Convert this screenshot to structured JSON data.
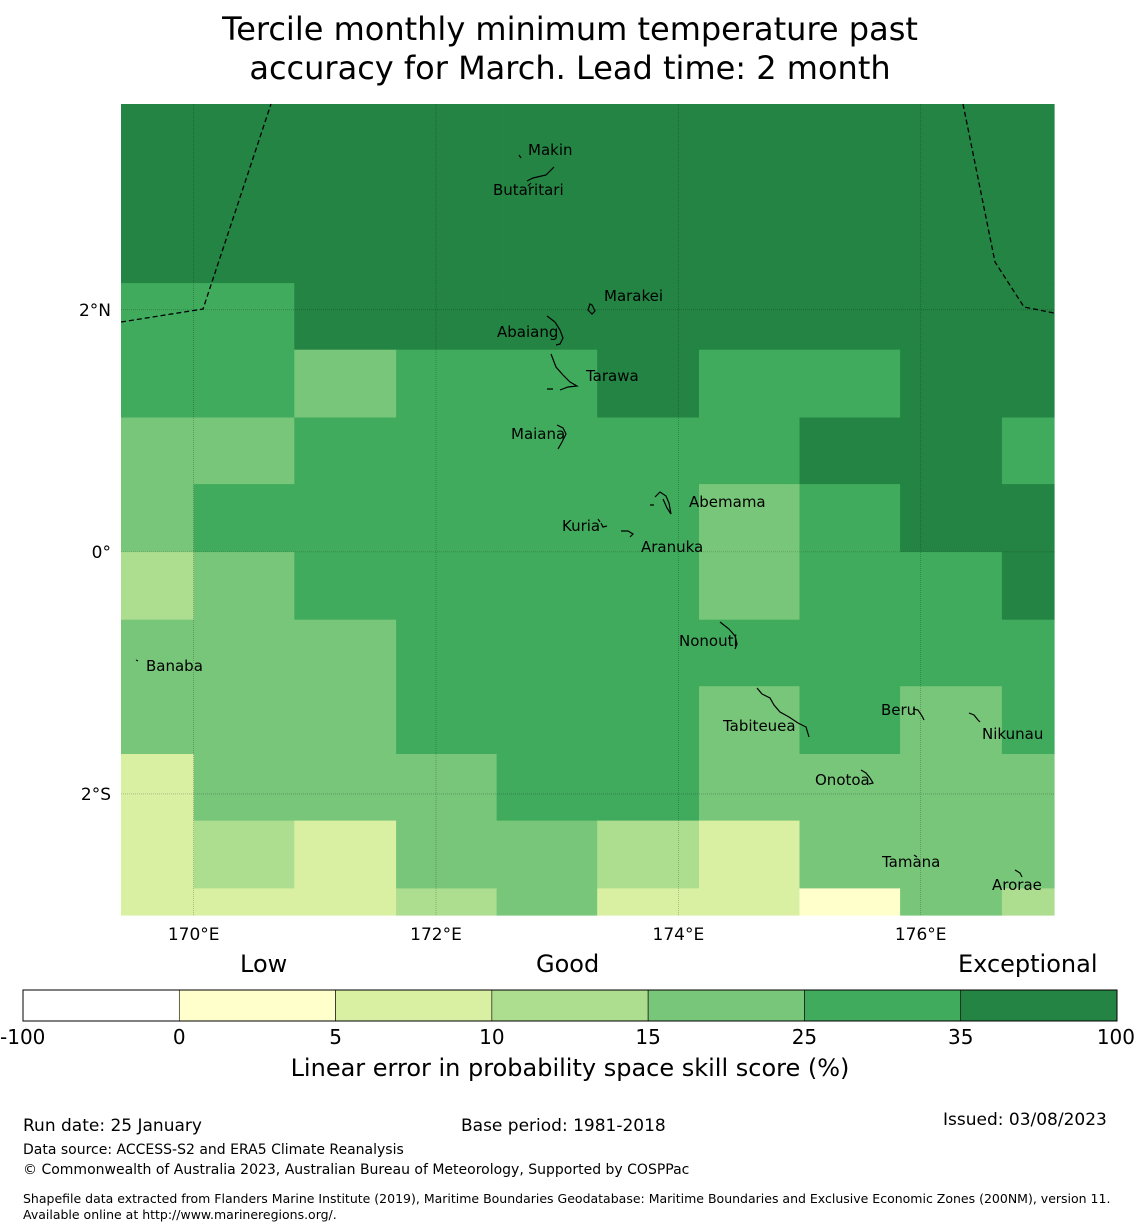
{
  "title": {
    "line1": "Tercile monthly minimum temperature past",
    "line2": "accuracy for March. Lead time: 2 month"
  },
  "map": {
    "lon_range": [
      169.4,
      177.1
    ],
    "lat_range": [
      -3.0,
      3.7
    ],
    "lat_ticks": [
      {
        "value": 2,
        "label": "2°N"
      },
      {
        "value": 0,
        "label": "0°"
      },
      {
        "value": -2,
        "label": "2°S"
      }
    ],
    "lon_ticks": [
      {
        "value": 170,
        "label": "170°E"
      },
      {
        "value": 172,
        "label": "172°E"
      },
      {
        "value": 174,
        "label": "174°E"
      },
      {
        "value": 176,
        "label": "176°E"
      }
    ],
    "grid_cols_lon": [
      169.4,
      170.0,
      170.83,
      171.67,
      172.5,
      173.33,
      174.17,
      175.0,
      175.83,
      176.67,
      177.1
    ],
    "grid_rows_lat": [
      3.7,
      2.22,
      1.67,
      1.11,
      0.56,
      0.0,
      -0.56,
      -1.11,
      -1.67,
      -2.22,
      -2.78,
      -3.0
    ],
    "skill_categories": [
      [
        6,
        6,
        6,
        6,
        6,
        6,
        6,
        6,
        6,
        6
      ],
      [
        5,
        5,
        6,
        6,
        6,
        6,
        6,
        6,
        6,
        6
      ],
      [
        5,
        5,
        4,
        5,
        5,
        6,
        5,
        5,
        6,
        6
      ],
      [
        4,
        4,
        5,
        5,
        5,
        5,
        5,
        6,
        6,
        5
      ],
      [
        4,
        5,
        5,
        5,
        5,
        5,
        4,
        5,
        6,
        6
      ],
      [
        3,
        4,
        5,
        5,
        5,
        5,
        4,
        5,
        5,
        6
      ],
      [
        4,
        4,
        4,
        5,
        5,
        5,
        5,
        5,
        5,
        5
      ],
      [
        4,
        4,
        4,
        5,
        5,
        5,
        4,
        5,
        4,
        5
      ],
      [
        2,
        4,
        4,
        4,
        5,
        5,
        4,
        4,
        4,
        4
      ],
      [
        2,
        3,
        2,
        4,
        4,
        3,
        2,
        4,
        4,
        4
      ],
      [
        2,
        2,
        2,
        3,
        4,
        2,
        2,
        1,
        4,
        3
      ]
    ],
    "colors": [
      "#ffffff",
      "#ffffcc",
      "#d9f0a3",
      "#addd8e",
      "#78c679",
      "#41ab5d",
      "#238443"
    ],
    "islands": [
      {
        "name": "Makin",
        "lon": 172.95,
        "lat": 3.3
      },
      {
        "name": "Butaritari",
        "lon": 172.8,
        "lat": 3.0
      },
      {
        "name": "Marakei",
        "lon": 173.28,
        "lat": 2.0
      },
      {
        "name": "Abaiang",
        "lon": 172.92,
        "lat": 1.82
      },
      {
        "name": "Tarawa",
        "lon": 173.0,
        "lat": 1.35
      },
      {
        "name": "Maiana",
        "lon": 173.0,
        "lat": 0.93
      },
      {
        "name": "Abemama",
        "lon": 173.87,
        "lat": 0.4
      },
      {
        "name": "Kuria",
        "lon": 173.4,
        "lat": 0.22
      },
      {
        "name": "Aranuka",
        "lon": 173.62,
        "lat": 0.17
      },
      {
        "name": "Nonouti",
        "lon": 174.4,
        "lat": -0.65
      },
      {
        "name": "Banaba",
        "lon": 169.53,
        "lat": -0.87
      },
      {
        "name": "Tabiteuea",
        "lon": 174.8,
        "lat": -1.4
      },
      {
        "name": "Beru",
        "lon": 176.0,
        "lat": -1.33
      },
      {
        "name": "Nikunau",
        "lon": 176.45,
        "lat": -1.37
      },
      {
        "name": "Onotoa",
        "lon": 175.58,
        "lat": -1.85
      },
      {
        "name": "Tamana",
        "lon": 175.97,
        "lat": -2.5
      },
      {
        "name": "Arorae",
        "lon": 176.82,
        "lat": -2.65
      }
    ]
  },
  "colorbar": {
    "header_low": "Low",
    "header_good": "Good",
    "header_exceptional": "Exceptional",
    "ticks": [
      "-100",
      "0",
      "5",
      "10",
      "15",
      "25",
      "35",
      "100"
    ],
    "label": "Linear error in probability space skill score (%)"
  },
  "footer": {
    "run_date": "Run date: 25 January",
    "base_period": "Base period: 1981-2018",
    "issued": "Issued: 03/08/2023",
    "data_source": "Data source: ACCESS-S2 and ERA5 Climate Reanalysis",
    "copyright": "© Commonwealth of Australia 2023, Australian Bureau of Meteorology, Supported by COSPPac",
    "shapefile": "Shapefile data extracted from Flanders Marine Institute (2019), Maritime Boundaries Geodatabase: Maritime Boundaries and Exclusive Economic Zones (200NM), version 11. Available online at http://www.marineregions.org/."
  }
}
